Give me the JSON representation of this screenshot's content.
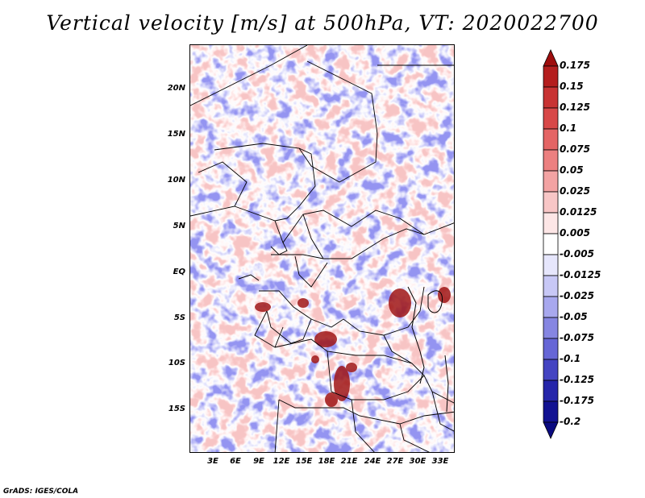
{
  "title": "Vertical velocity [m/s] at 500hPa, VT: 2020022700",
  "map": {
    "lat_ticks": [
      "20N",
      "15N",
      "10N",
      "5N",
      "EQ",
      "5S",
      "10S",
      "15S"
    ],
    "lon_ticks": [
      "3E",
      "6E",
      "9E",
      "12E",
      "15E",
      "18E",
      "21E",
      "24E",
      "27E",
      "30E",
      "33E"
    ],
    "lat_range_deg": [
      -20,
      25
    ],
    "lon_range_deg": [
      0,
      35
    ]
  },
  "colorbar": {
    "levels": [
      "0.175",
      "0.15",
      "0.125",
      "0.1",
      "0.075",
      "0.05",
      "0.025",
      "0.0125",
      "0.005",
      "-0.005",
      "-0.0125",
      "-0.025",
      "-0.05",
      "-0.075",
      "-0.1",
      "-0.125",
      "-0.175",
      "-0.2"
    ],
    "colors": [
      "#9e0d0d",
      "#b41e1e",
      "#c83333",
      "#d84848",
      "#e46565",
      "#ec8080",
      "#f3a3a3",
      "#f8c6c6",
      "#fde6e6",
      "#ffffff",
      "#e6e6fc",
      "#c8c8f6",
      "#a8a8ee",
      "#8686e2",
      "#6666d6",
      "#4444c2",
      "#2626aa",
      "#121292",
      "#0a0a80"
    ]
  },
  "credit": "GrADS: IGES/COLA"
}
